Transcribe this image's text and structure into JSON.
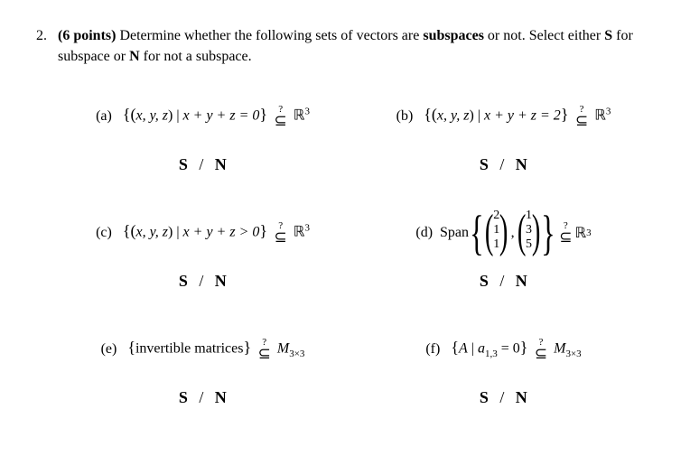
{
  "question": {
    "number": "2.",
    "points": "(6 points)",
    "prompt_before": "Determine whether the following sets of vectors are ",
    "subspaces_word": "subspaces",
    "prompt_after": " or not. Select either ",
    "S_word": "S",
    "for_sub": " for subspace or ",
    "N_word": "N",
    "for_not": " for not a subspace."
  },
  "sn": {
    "S": "S",
    "slash": "/",
    "N": "N"
  },
  "qmark": "?",
  "subset": "⊆",
  "parts": {
    "a": {
      "label": "(a) ",
      "set_open": "{(",
      "vars": "x, y, z",
      "set_mid": ") | ",
      "cond": "x + y + z = 0",
      "set_close": "} ",
      "space": "ℝ",
      "exp": "3"
    },
    "b": {
      "label": "(b) ",
      "set_open": "{(",
      "vars": "x, y, z",
      "set_mid": ") | ",
      "cond": "x + y + z = 2",
      "set_close": "} ",
      "space": "ℝ",
      "exp": "3"
    },
    "c": {
      "label": "(c) ",
      "set_open": "{(",
      "vars": "x, y, z",
      "set_mid": ") | ",
      "cond": "x + y + z > 0",
      "set_close": "} ",
      "space": "ℝ",
      "exp": "3"
    },
    "d": {
      "label": "(d) ",
      "span": "Span",
      "v1": [
        "2",
        "1",
        "1"
      ],
      "v2": [
        "1",
        "3",
        "5"
      ],
      "comma": ",",
      "space": "ℝ",
      "exp": "3"
    },
    "e": {
      "label": "(e) ",
      "set_open": "{",
      "body": "invertible matrices",
      "set_close": "} ",
      "space": "M",
      "dim": "3×3"
    },
    "f": {
      "label": "(f) ",
      "set_open": "{",
      "v": "A",
      "mid": " | ",
      "elem": "a",
      "idx": "1,3",
      "eq": " = 0",
      "set_close": "} ",
      "space": "M",
      "dim": "3×3"
    }
  }
}
